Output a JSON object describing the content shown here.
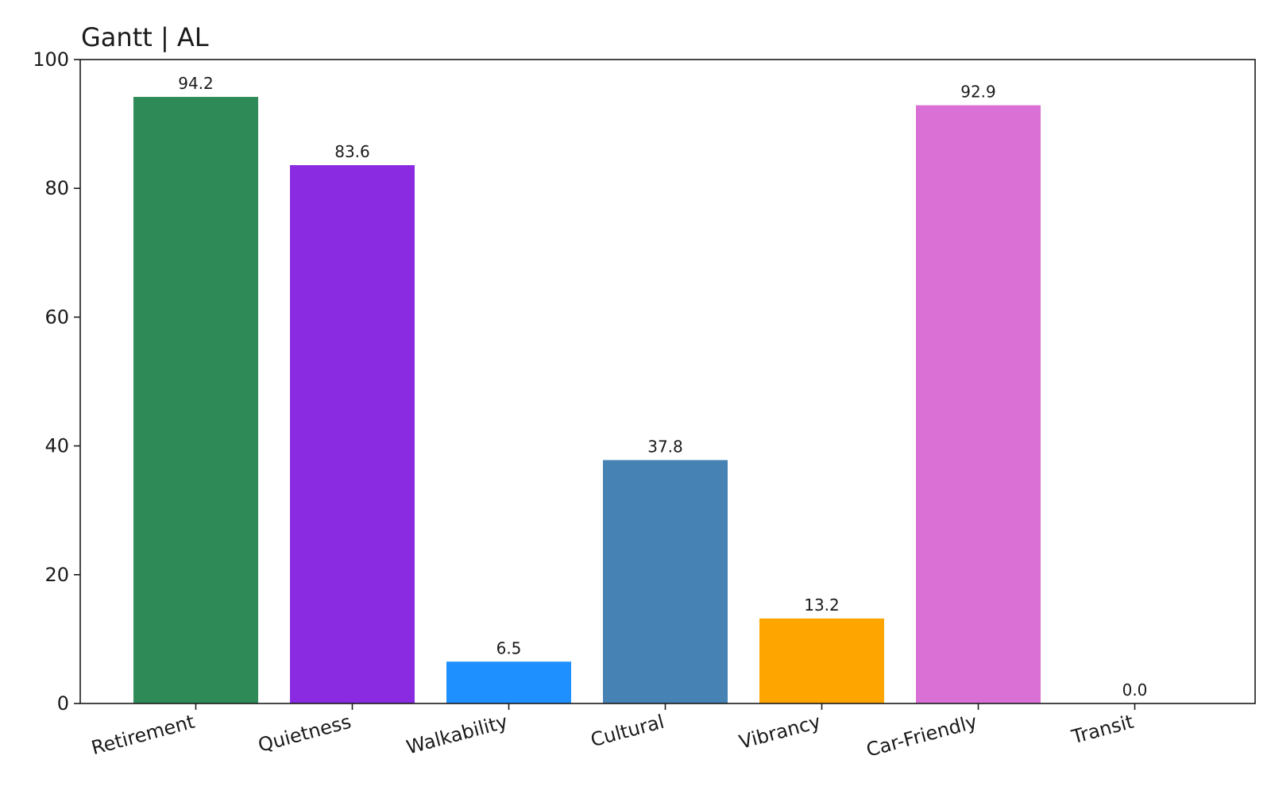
{
  "chart_data": {
    "type": "bar",
    "title": "Gantt | AL",
    "xlabel": "",
    "ylabel": "",
    "categories": [
      "Retirement",
      "Quietness",
      "Walkability",
      "Cultural",
      "Vibrancy",
      "Car-Friendly",
      "Transit"
    ],
    "values": [
      94.2,
      83.6,
      6.5,
      37.8,
      13.2,
      92.9,
      0.0
    ],
    "value_labels": [
      "94.2",
      "83.6",
      "6.5",
      "37.8",
      "13.2",
      "92.9",
      "0.0"
    ],
    "colors": [
      "#2e8b57",
      "#8a2be2",
      "#1e90ff",
      "#4682b4",
      "#ffa500",
      "#da70d6",
      "#808080"
    ],
    "ylim": [
      0,
      100
    ],
    "yticks": [
      0,
      20,
      40,
      60,
      80,
      100
    ],
    "ytick_labels": [
      "0",
      "20",
      "40",
      "60",
      "80",
      "100"
    ],
    "grid": false,
    "legend": "none"
  }
}
